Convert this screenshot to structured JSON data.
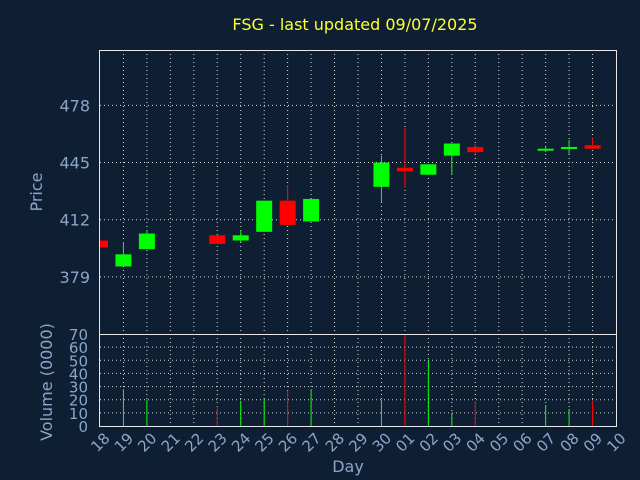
{
  "chart_data": {
    "type": "candlestick",
    "title": "FSG - last updated 09/07/2025",
    "xlabel": "Day",
    "price_panel": {
      "ylabel": "Price",
      "yticks": [
        379,
        412,
        445,
        478
      ],
      "ylim": [
        346,
        510
      ],
      "grid": true
    },
    "volume_panel": {
      "ylabel": "Volume (0000)",
      "yticks": [
        0,
        10,
        20,
        30,
        40,
        50,
        60,
        70
      ],
      "ylim": [
        0,
        70
      ],
      "grid": true
    },
    "categories": [
      "18",
      "19",
      "20",
      "21",
      "22",
      "23",
      "24",
      "25",
      "26",
      "27",
      "28",
      "29",
      "30",
      "01",
      "02",
      "03",
      "04",
      "05",
      "06",
      "07",
      "08",
      "09",
      "10"
    ],
    "candles": [
      {
        "day": "18",
        "open": 400,
        "close": 396,
        "high": 400,
        "low": 396,
        "volume": 0
      },
      {
        "day": "19",
        "open": 385,
        "close": 392,
        "high": 399,
        "low": 385,
        "volume": 28
      },
      {
        "day": "20",
        "open": 395,
        "close": 404,
        "high": 406,
        "low": 395,
        "volume": 20
      },
      {
        "day": "23",
        "open": 403,
        "close": 398,
        "high": 403,
        "low": 398,
        "volume": 15
      },
      {
        "day": "24",
        "open": 400,
        "close": 403,
        "high": 406,
        "low": 399,
        "volume": 19
      },
      {
        "day": "25",
        "open": 405,
        "close": 423,
        "high": 423,
        "low": 405,
        "volume": 21
      },
      {
        "day": "26",
        "open": 423,
        "close": 409,
        "high": 432,
        "low": 409,
        "volume": 27
      },
      {
        "day": "27",
        "open": 411,
        "close": 424,
        "high": 424,
        "low": 411,
        "volume": 28
      },
      {
        "day": "30",
        "open": 431,
        "close": 445,
        "high": 449,
        "low": 422,
        "volume": 20
      },
      {
        "day": "01",
        "open": 442,
        "close": 440,
        "high": 465,
        "low": 431,
        "volume": 70
      },
      {
        "day": "02",
        "open": 438,
        "close": 444,
        "high": 444,
        "low": 438,
        "volume": 50
      },
      {
        "day": "03",
        "open": 449,
        "close": 456,
        "high": 456,
        "low": 438,
        "volume": 10
      },
      {
        "day": "04",
        "open": 454,
        "close": 451,
        "high": 456,
        "low": 450,
        "volume": 18
      },
      {
        "day": "07",
        "open": 452,
        "close": 453,
        "high": 454,
        "low": 451,
        "volume": 16
      },
      {
        "day": "08",
        "open": 453,
        "close": 454,
        "high": 458,
        "low": 450,
        "volume": 13
      },
      {
        "day": "09",
        "open": 455,
        "close": 453,
        "high": 459,
        "low": 453,
        "volume": 19
      }
    ],
    "colors": {
      "up": "#00ff00",
      "down": "#ff0000",
      "background": "#0f1f33",
      "title": "#ffff33",
      "axis_text": "#8aa6c8",
      "frame": "#e8e8e8"
    }
  }
}
